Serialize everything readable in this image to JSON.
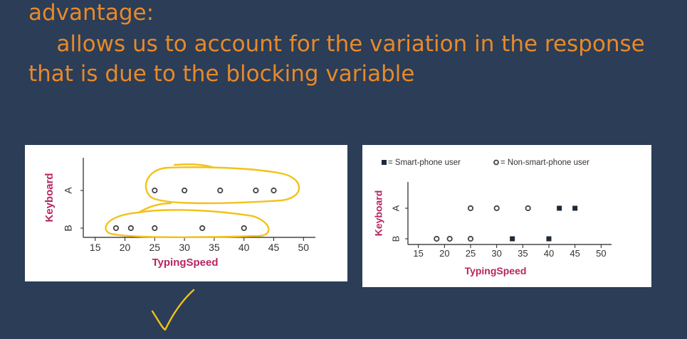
{
  "slide": {
    "text_lines": [
      "advantage:",
      "    allows us to account for the variation in the response",
      "that is due to the blocking variable"
    ],
    "colors": {
      "background": "#2b3d57",
      "text": "#e8892a",
      "annotation": "#f2c21a",
      "axis_label": "#b8255f"
    }
  },
  "chart_data": [
    {
      "type": "scatter",
      "xlabel": "TypingSpeed",
      "ylabel": "Keyboard",
      "xticks": [
        15,
        20,
        25,
        30,
        35,
        40,
        45,
        50
      ],
      "categories": [
        "B",
        "A"
      ],
      "xlim": [
        13,
        52
      ],
      "series": [
        {
          "marker": "circle",
          "points": [
            {
              "x": 18.5,
              "y": "B"
            },
            {
              "x": 21,
              "y": "B"
            },
            {
              "x": 25,
              "y": "B"
            },
            {
              "x": 33,
              "y": "B"
            },
            {
              "x": 40,
              "y": "B"
            },
            {
              "x": 25,
              "y": "A"
            },
            {
              "x": 30,
              "y": "A"
            },
            {
              "x": 36,
              "y": "A"
            },
            {
              "x": 42,
              "y": "A"
            },
            {
              "x": 45,
              "y": "A"
            }
          ]
        }
      ],
      "annotations": "hand-drawn yellow ovals circling each row"
    },
    {
      "type": "scatter",
      "xlabel": "TypingSpeed",
      "ylabel": "Keyboard",
      "xticks": [
        15,
        20,
        25,
        30,
        35,
        40,
        45,
        50
      ],
      "categories": [
        "B",
        "A"
      ],
      "xlim": [
        13,
        52
      ],
      "legend": [
        "▪= Smart-phone user",
        "●= Non-smart-phone user"
      ],
      "series": [
        {
          "name": "Smart-phone user",
          "marker": "square",
          "points": [
            {
              "x": 33,
              "y": "B"
            },
            {
              "x": 40,
              "y": "B"
            },
            {
              "x": 42,
              "y": "A"
            },
            {
              "x": 45,
              "y": "A"
            }
          ]
        },
        {
          "name": "Non-smart-phone user",
          "marker": "circle",
          "points": [
            {
              "x": 18.5,
              "y": "B"
            },
            {
              "x": 21,
              "y": "B"
            },
            {
              "x": 25,
              "y": "B"
            },
            {
              "x": 25,
              "y": "A"
            },
            {
              "x": 30,
              "y": "A"
            },
            {
              "x": 36,
              "y": "A"
            }
          ]
        }
      ]
    }
  ]
}
